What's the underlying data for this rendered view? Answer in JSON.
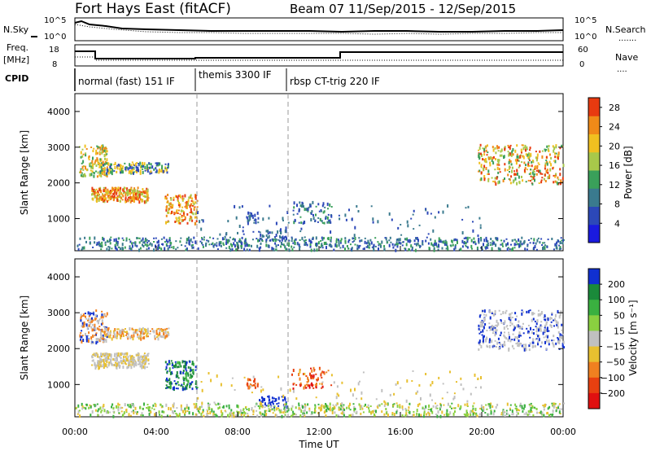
{
  "header": {
    "station": "Fort Hays East (fitACF)",
    "beam_info": "Beam 07  11/Sep/2015 - 12/Sep/2015"
  },
  "top_panels": {
    "nsky_label": "N.Sky",
    "nsearch_label": "N.Search",
    "noise_ticks": [
      "10^5",
      "10^0"
    ],
    "freq_label_1": "Freq.",
    "freq_label_2": "[MHz]",
    "freq_ticks": [
      "18",
      "8"
    ],
    "nave_label": "Nave",
    "nave_ticks": [
      "60",
      "0"
    ],
    "cpid_label": "CPID",
    "cpid_modes": [
      {
        "label": "normal (fast) 151 IF",
        "start_hour": 0.0
      },
      {
        "label": "themis 3300 IF",
        "start_hour": 6.0
      },
      {
        "label": "rbsp CT-trig 220 IF",
        "start_hour": 10.5
      }
    ]
  },
  "chart_data": [
    {
      "type": "heatmap",
      "name": "power",
      "ylabel": "Slant Range [km]",
      "yticks": [
        1000,
        2000,
        3000,
        4000
      ],
      "ylim": [
        100,
        4500
      ],
      "xlim": [
        0,
        24
      ],
      "colorbar_label": "Power [dB]",
      "colorbar_ticks": [
        4,
        8,
        12,
        16,
        20,
        24,
        28
      ],
      "colorbar_range": [
        0,
        30
      ],
      "colors": [
        "#1a1adf",
        "#2c48b8",
        "#3a7a8e",
        "#3aa05a",
        "#a8c84a",
        "#f0c020",
        "#f08a18",
        "#e83a10"
      ]
    },
    {
      "type": "heatmap",
      "name": "velocity",
      "xlabel": "Time UT",
      "ylabel": "Slant Range [km]",
      "xticks": [
        "00:00",
        "04:00",
        "08:00",
        "12:00",
        "16:00",
        "20:00",
        "00:00"
      ],
      "yticks": [
        1000,
        2000,
        3000,
        4000
      ],
      "ylim": [
        100,
        4500
      ],
      "xlim": [
        0,
        24
      ],
      "colorbar_label": "Velocity [m s⁻¹]",
      "colorbar_ticks": [
        "200",
        "100",
        "50",
        "15",
        "−15",
        "−50",
        "−100",
        "−200"
      ],
      "colors": [
        "#1030d0",
        "#1a8a3a",
        "#3ab040",
        "#8ad040",
        "#c0c0c0",
        "#e8c030",
        "#f08020",
        "#e84010",
        "#e01010"
      ]
    }
  ]
}
